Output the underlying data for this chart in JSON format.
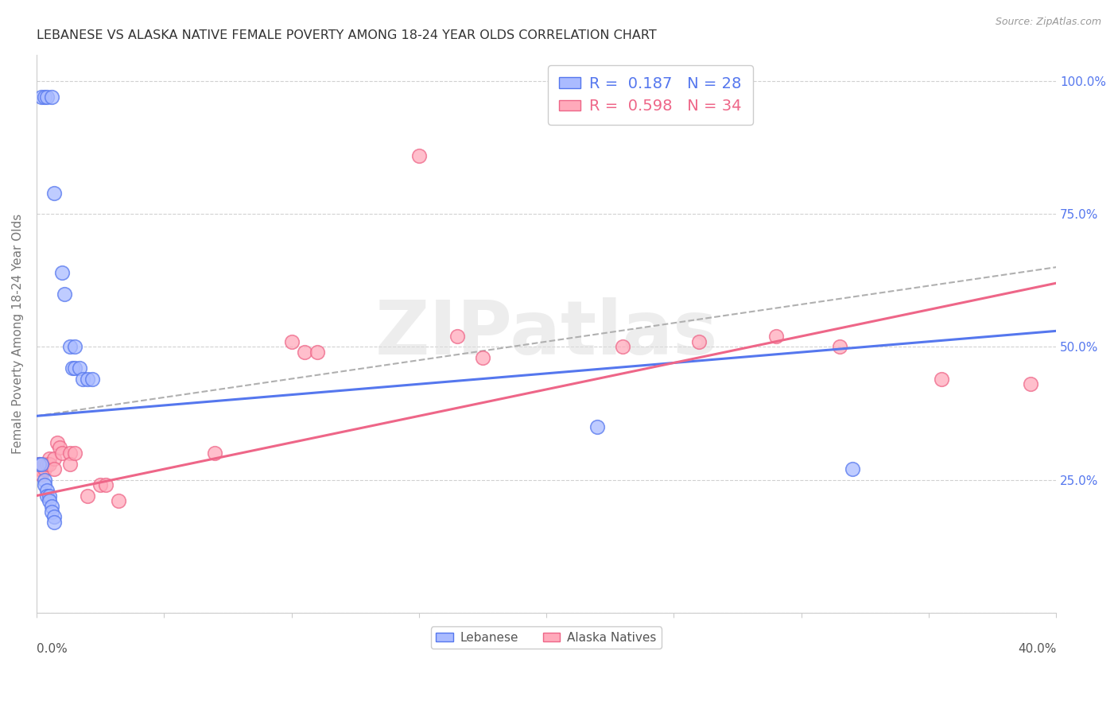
{
  "title": "LEBANESE VS ALASKA NATIVE FEMALE POVERTY AMONG 18-24 YEAR OLDS CORRELATION CHART",
  "source": "Source: ZipAtlas.com",
  "ylabel": "Female Poverty Among 18-24 Year Olds",
  "legend_label_blue": "Lebanese",
  "legend_label_pink": "Alaska Natives",
  "watermark": "ZIPatlas",
  "blue_fill": "#aabbff",
  "blue_edge": "#5577ee",
  "pink_fill": "#ffaabb",
  "pink_edge": "#ee6688",
  "blue_line": "#5577ee",
  "pink_line": "#ee6688",
  "blue_points": [
    [
      0.002,
      0.97
    ],
    [
      0.003,
      0.97
    ],
    [
      0.004,
      0.97
    ],
    [
      0.006,
      0.97
    ],
    [
      0.007,
      0.79
    ],
    [
      0.01,
      0.64
    ],
    [
      0.011,
      0.6
    ],
    [
      0.013,
      0.5
    ],
    [
      0.014,
      0.46
    ],
    [
      0.015,
      0.5
    ],
    [
      0.015,
      0.46
    ],
    [
      0.017,
      0.46
    ],
    [
      0.018,
      0.44
    ],
    [
      0.02,
      0.44
    ],
    [
      0.022,
      0.44
    ],
    [
      0.001,
      0.28
    ],
    [
      0.002,
      0.28
    ],
    [
      0.003,
      0.25
    ],
    [
      0.003,
      0.24
    ],
    [
      0.004,
      0.23
    ],
    [
      0.004,
      0.22
    ],
    [
      0.005,
      0.22
    ],
    [
      0.005,
      0.21
    ],
    [
      0.006,
      0.2
    ],
    [
      0.006,
      0.19
    ],
    [
      0.007,
      0.18
    ],
    [
      0.007,
      0.17
    ],
    [
      0.22,
      0.35
    ],
    [
      0.32,
      0.27
    ]
  ],
  "pink_points": [
    [
      0.001,
      0.28
    ],
    [
      0.001,
      0.27
    ],
    [
      0.002,
      0.27
    ],
    [
      0.002,
      0.26
    ],
    [
      0.003,
      0.28
    ],
    [
      0.003,
      0.27
    ],
    [
      0.004,
      0.28
    ],
    [
      0.005,
      0.29
    ],
    [
      0.005,
      0.28
    ],
    [
      0.007,
      0.29
    ],
    [
      0.007,
      0.27
    ],
    [
      0.008,
      0.32
    ],
    [
      0.009,
      0.31
    ],
    [
      0.01,
      0.3
    ],
    [
      0.013,
      0.3
    ],
    [
      0.013,
      0.28
    ],
    [
      0.015,
      0.3
    ],
    [
      0.02,
      0.22
    ],
    [
      0.025,
      0.24
    ],
    [
      0.027,
      0.24
    ],
    [
      0.032,
      0.21
    ],
    [
      0.07,
      0.3
    ],
    [
      0.1,
      0.51
    ],
    [
      0.105,
      0.49
    ],
    [
      0.11,
      0.49
    ],
    [
      0.15,
      0.86
    ],
    [
      0.165,
      0.52
    ],
    [
      0.175,
      0.48
    ],
    [
      0.23,
      0.5
    ],
    [
      0.26,
      0.51
    ],
    [
      0.29,
      0.52
    ],
    [
      0.315,
      0.5
    ],
    [
      0.355,
      0.44
    ],
    [
      0.39,
      0.43
    ]
  ],
  "xlim": [
    0.0,
    0.4
  ],
  "ylim": [
    0.0,
    1.05
  ],
  "blue_trend": [
    0.0,
    0.37,
    0.4,
    0.53
  ],
  "pink_trend": [
    0.0,
    0.22,
    0.4,
    0.62
  ],
  "dash_line": [
    0.0,
    0.37,
    0.4,
    0.65
  ],
  "yticks": [
    0.0,
    0.25,
    0.5,
    0.75,
    1.0
  ],
  "ytick_labels_right": [
    "",
    "25.0%",
    "50.0%",
    "75.0%",
    "100.0%"
  ]
}
